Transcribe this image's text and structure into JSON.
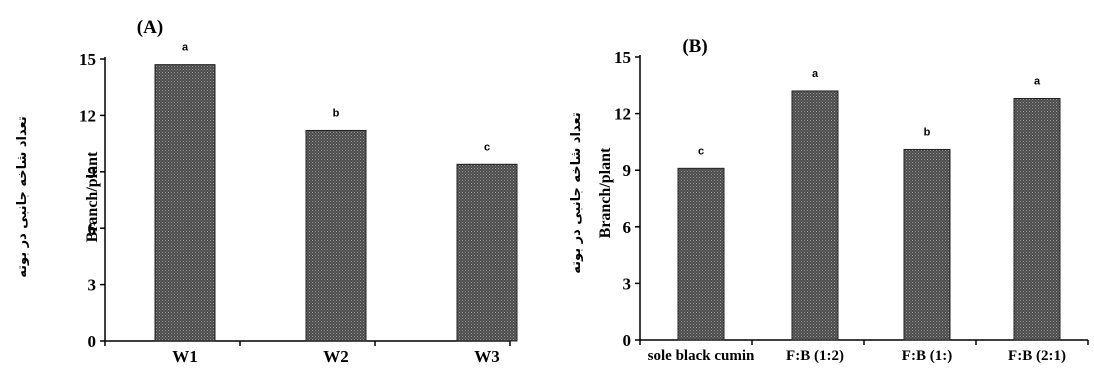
{
  "chart_data": [
    {
      "type": "bar",
      "panel_label": "(A)",
      "categories": [
        "W1",
        "W2",
        "W3"
      ],
      "values": [
        14.7,
        11.2,
        9.4
      ],
      "significance": [
        "a",
        "b",
        "c"
      ],
      "ylabel": "Branch/plant",
      "ylabel_secondary": "تعداد شاخه جانبی در بوته",
      "ylim": [
        0,
        15
      ],
      "yticks": [
        0,
        3,
        6,
        9,
        12,
        15
      ],
      "grid": false,
      "bar_color": "#3a3a3a"
    },
    {
      "type": "bar",
      "panel_label": "(B)",
      "categories": [
        "sole black cumin",
        "F:B (1:2)",
        "F:B (1:)",
        "F:B (2:1)"
      ],
      "values": [
        9.1,
        13.2,
        10.1,
        12.8
      ],
      "significance": [
        "c",
        "a",
        "b",
        "a"
      ],
      "ylabel": "Branch/plant",
      "ylabel_secondary": "تعداد شاخه جانبی در بوته",
      "ylim": [
        0,
        15
      ],
      "yticks": [
        0,
        3,
        6,
        9,
        12,
        15
      ],
      "grid": false,
      "bar_color": "#3a3a3a"
    }
  ]
}
